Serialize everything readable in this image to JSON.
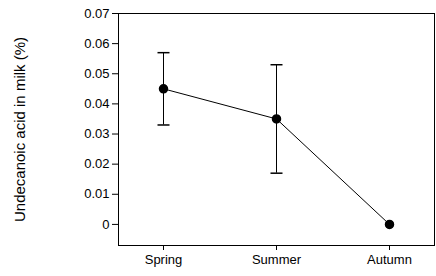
{
  "chart_data": {
    "type": "line",
    "categories": [
      "Spring",
      "Summer",
      "Autumn"
    ],
    "values": [
      0.045,
      0.035,
      0
    ],
    "error_bars": [
      [
        0.033,
        0.057
      ],
      [
        0.017,
        0.053
      ],
      null
    ],
    "y_label": "Undecanoic acid in milk (%)",
    "ylim": [
      -0.007,
      0.07
    ],
    "yticks": [
      0,
      0.01,
      0.02,
      0.03,
      0.04,
      0.05,
      0.06,
      0.07
    ],
    "color": "#000000",
    "marker": "circle",
    "grid": false
  }
}
